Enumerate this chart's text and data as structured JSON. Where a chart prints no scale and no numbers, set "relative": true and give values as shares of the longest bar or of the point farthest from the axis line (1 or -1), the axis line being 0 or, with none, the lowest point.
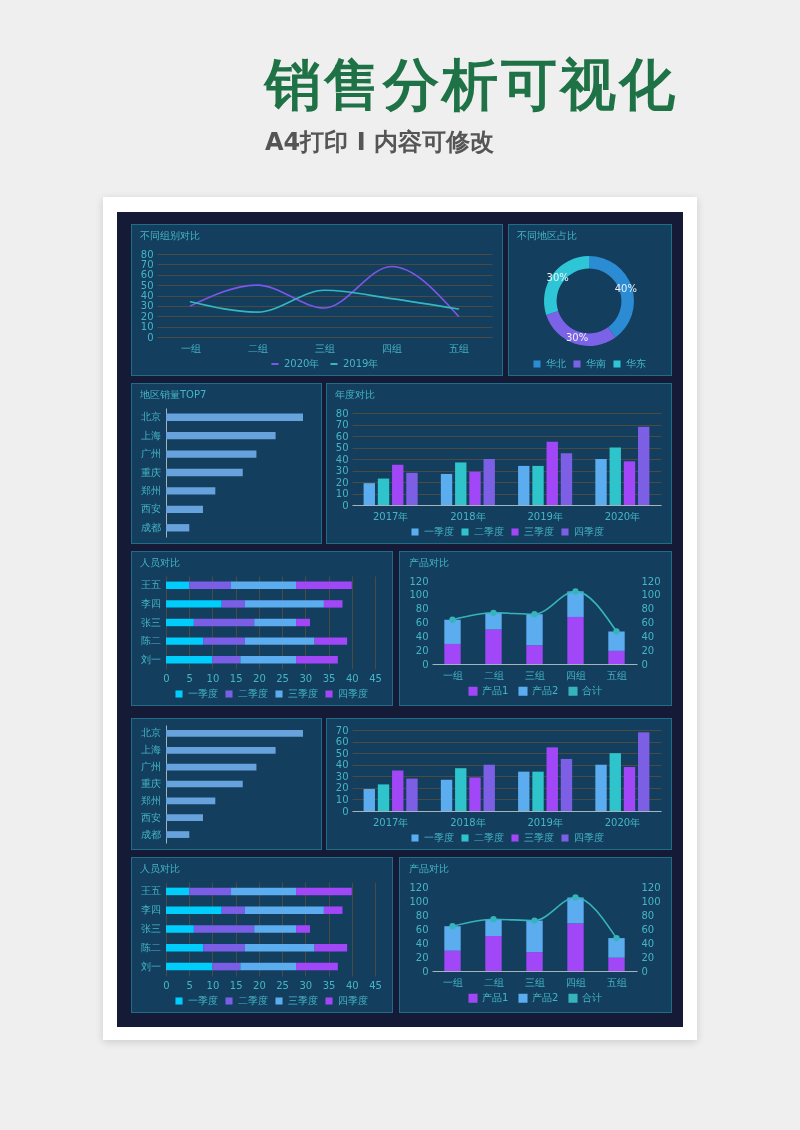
{
  "chart_data": [
    {
      "type": "other",
      "title": "销售分析可视化",
      "subtitle": "A4打印 I 内容可修改"
    },
    {
      "type": "line",
      "title": "不同组别对比",
      "categories": [
        "一组",
        "二组",
        "三组",
        "四组",
        "五组"
      ],
      "series": [
        {
          "name": "2020年",
          "color": "#7e57e8",
          "values": [
            30,
            50,
            28,
            68,
            20
          ]
        },
        {
          "name": "2019年",
          "color": "#33b8c2",
          "values": [
            34,
            24,
            45,
            37,
            27
          ]
        }
      ],
      "ylim": [
        0,
        80
      ],
      "yticks": [
        0,
        10,
        20,
        30,
        40,
        50,
        60,
        70,
        80
      ],
      "grid": "y",
      "legend": "bottom"
    },
    {
      "type": "donut",
      "title": "不同地区占比",
      "categories": [
        "华北",
        "华南",
        "华东"
      ],
      "values": [
        40,
        30,
        30
      ],
      "colors": [
        "#2b8bd3",
        "#7b62e6",
        "#2ec6d6"
      ],
      "value_labels": [
        "40%",
        "30%",
        "30%"
      ],
      "legend": "bottom"
    },
    {
      "type": "bar",
      "orientation": "horizontal",
      "relative": true,
      "title": "地区销量TOP7",
      "categories": [
        "北京",
        "上海",
        "广州",
        "重庆",
        "郑州",
        "西安",
        "成都"
      ],
      "values": [
        1,
        0.8,
        0.66,
        0.56,
        0.36,
        0.27,
        0.17
      ],
      "color": "#68a2dd"
    },
    {
      "type": "bar",
      "title": "年度对比",
      "categories": [
        "2017年",
        "2018年",
        "2019年",
        "2020年"
      ],
      "series": [
        {
          "name": "一季度",
          "color": "#5badf0",
          "values": [
            19,
            27,
            34,
            40
          ]
        },
        {
          "name": "二季度",
          "color": "#2fc3cb",
          "values": [
            23,
            37,
            34,
            50
          ]
        },
        {
          "name": "三季度",
          "color": "#a147f7",
          "values": [
            35,
            29,
            55,
            38
          ]
        },
        {
          "name": "四季度",
          "color": "#7c5fe5",
          "values": [
            28,
            40,
            45,
            68
          ]
        }
      ],
      "ylim": [
        0,
        80
      ],
      "yticks": [
        0,
        10,
        20,
        30,
        40,
        50,
        60,
        70,
        80
      ],
      "grid": "y",
      "legend": "bottom"
    },
    {
      "type": "bar",
      "orientation": "horizontal",
      "stacked": true,
      "title": "人员对比",
      "categories": [
        "王五",
        "李四",
        "张三",
        "陈二",
        "刘一"
      ],
      "series": [
        {
          "name": "一季度",
          "color": "#00cdfb",
          "values": [
            5,
            12,
            6,
            8,
            10
          ]
        },
        {
          "name": "二季度",
          "color": "#7a5ee6",
          "values": [
            9,
            5,
            13,
            9,
            6
          ]
        },
        {
          "name": "三季度",
          "color": "#5badf0",
          "values": [
            14,
            17,
            9,
            15,
            12
          ]
        },
        {
          "name": "四季度",
          "color": "#a147f7",
          "values": [
            12,
            4,
            3,
            7,
            9
          ]
        }
      ],
      "xlim": [
        0,
        45
      ],
      "xticks": [
        0,
        5,
        10,
        15,
        20,
        25,
        30,
        35,
        40,
        45
      ],
      "grid": "x",
      "legend": "bottom"
    },
    {
      "type": "bar",
      "stacked": true,
      "title": "产品对比",
      "categories": [
        "一组",
        "二组",
        "三组",
        "四组",
        "五组"
      ],
      "series": [
        {
          "name": "产品1",
          "color": "#a147f7",
          "values": [
            29,
            50,
            27,
            68,
            19
          ]
        },
        {
          "name": "产品2",
          "color": "#5badf0",
          "values": [
            35,
            24,
            45,
            37,
            28
          ]
        },
        {
          "name": "合计",
          "type": "line",
          "axis": "y2",
          "color": "#35b5bb",
          "values": [
            64,
            74,
            72,
            105,
            47
          ]
        }
      ],
      "ylim": [
        0,
        120
      ],
      "yticks": [
        0,
        20,
        40,
        60,
        80,
        100,
        120
      ],
      "y2lim": [
        0,
        120
      ],
      "y2ticks": [
        0,
        20,
        40,
        60,
        80,
        100,
        120
      ],
      "marker": "circle",
      "legend": "bottom"
    },
    {
      "type": "bar",
      "orientation": "horizontal",
      "relative": true,
      "categories": [
        "北京",
        "上海",
        "广州",
        "重庆",
        "郑州",
        "西安",
        "成都"
      ],
      "values": [
        1,
        0.8,
        0.66,
        0.56,
        0.36,
        0.27,
        0.17
      ],
      "color": "#68a2dd"
    },
    {
      "type": "bar",
      "categories": [
        "2017年",
        "2018年",
        "2019年",
        "2020年"
      ],
      "series": [
        {
          "name": "一季度",
          "color": "#5badf0",
          "values": [
            19,
            27,
            34,
            40
          ]
        },
        {
          "name": "二季度",
          "color": "#2fc3cb",
          "values": [
            23,
            37,
            34,
            50
          ]
        },
        {
          "name": "三季度",
          "color": "#a147f7",
          "values": [
            35,
            29,
            55,
            38
          ]
        },
        {
          "name": "四季度",
          "color": "#7c5fe5",
          "values": [
            28,
            40,
            45,
            68
          ]
        }
      ],
      "ylim": [
        0,
        70
      ],
      "yticks": [
        0,
        10,
        20,
        30,
        40,
        50,
        60,
        70
      ],
      "grid": "y",
      "legend": "bottom"
    },
    {
      "type": "bar",
      "orientation": "horizontal",
      "stacked": true,
      "title": "人员对比",
      "categories": [
        "王五",
        "李四",
        "张三",
        "陈二",
        "刘一"
      ],
      "series": [
        {
          "name": "一季度",
          "color": "#00cdfb",
          "values": [
            5,
            12,
            6,
            8,
            10
          ]
        },
        {
          "name": "二季度",
          "color": "#7a5ee6",
          "values": [
            9,
            5,
            13,
            9,
            6
          ]
        },
        {
          "name": "三季度",
          "color": "#5badf0",
          "values": [
            14,
            17,
            9,
            15,
            12
          ]
        },
        {
          "name": "四季度",
          "color": "#a147f7",
          "values": [
            12,
            4,
            3,
            7,
            9
          ]
        }
      ],
      "xlim": [
        0,
        45
      ],
      "xticks": [
        0,
        5,
        10,
        15,
        20,
        25,
        30,
        35,
        40,
        45
      ],
      "grid": "x",
      "legend": "bottom"
    },
    {
      "type": "bar",
      "stacked": true,
      "title": "产品对比",
      "categories": [
        "一组",
        "二组",
        "三组",
        "四组",
        "五组"
      ],
      "series": [
        {
          "name": "产品1",
          "color": "#a147f7",
          "values": [
            29,
            50,
            27,
            68,
            19
          ]
        },
        {
          "name": "产品2",
          "color": "#5badf0",
          "values": [
            35,
            24,
            45,
            37,
            28
          ]
        },
        {
          "name": "合计",
          "type": "line",
          "axis": "y2",
          "color": "#35b5bb",
          "values": [
            64,
            74,
            72,
            105,
            47
          ]
        }
      ],
      "ylim": [
        0,
        120
      ],
      "yticks": [
        0,
        20,
        40,
        60,
        80,
        100,
        120
      ],
      "y2lim": [
        0,
        120
      ],
      "y2ticks": [
        0,
        20,
        40,
        60,
        80,
        100,
        120
      ],
      "marker": "circle",
      "legend": "bottom"
    }
  ]
}
